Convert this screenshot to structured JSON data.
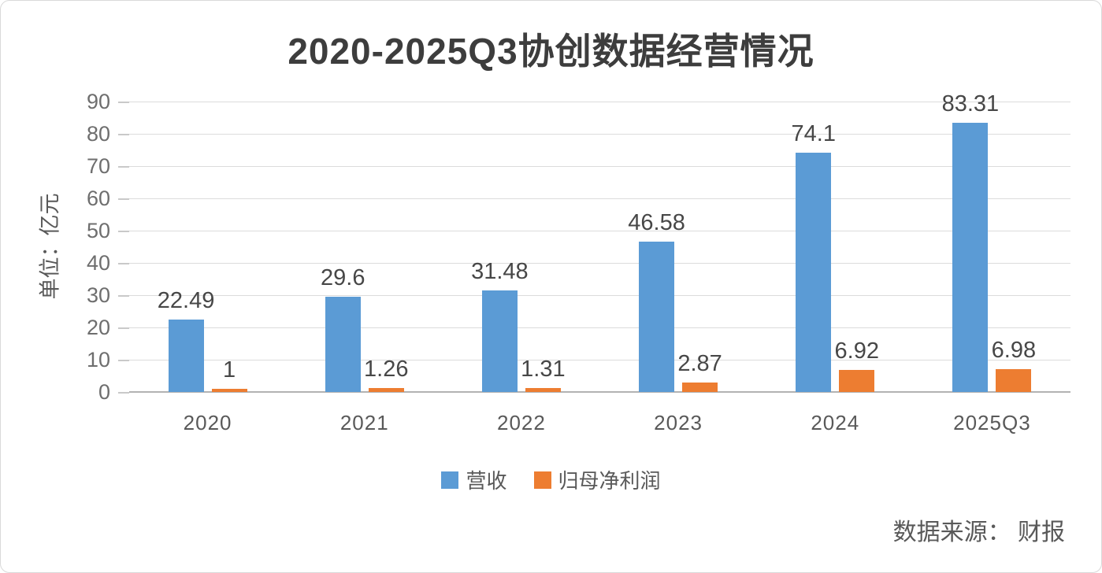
{
  "chart_data": {
    "type": "bar",
    "title": "2020-2025Q3协创数据经营情况",
    "ylabel": "单位：亿元",
    "categories": [
      "2020",
      "2021",
      "2022",
      "2023",
      "2024",
      "2025Q3"
    ],
    "series": [
      {
        "key": "revenue",
        "name": "营收",
        "color": "#5b9bd5",
        "values": [
          22.49,
          29.6,
          31.48,
          46.58,
          74.1,
          83.31
        ]
      },
      {
        "key": "net-profit",
        "name": "归母净利润",
        "color": "#ed7d31",
        "values": [
          1,
          1.26,
          1.31,
          2.87,
          6.92,
          6.98
        ]
      }
    ],
    "ylim": [
      0,
      90
    ],
    "ytick_step": 10,
    "grid": true,
    "legend_position": "bottom",
    "source": "数据来源： 财报"
  },
  "colors": {
    "revenue": "#5b9bd5",
    "net_profit": "#ed7d31",
    "grid": "#dcdcdc",
    "axis": "#b3b3b3",
    "title_text": "#3d3d3d",
    "axis_text": "#595959"
  }
}
